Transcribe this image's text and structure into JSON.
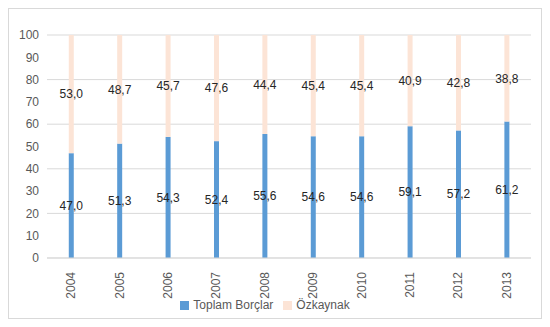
{
  "chart_data": {
    "type": "bar",
    "stacked": true,
    "data_labels": true,
    "grid": true,
    "legend": "bottom",
    "categories": [
      "2004",
      "2005",
      "2006",
      "2007",
      "2008",
      "2009",
      "2010",
      "2011",
      "2012",
      "2013"
    ],
    "series": [
      {
        "name": "Toplam Borçlar",
        "color": "#5b9bd5",
        "values": [
          47.0,
          51.3,
          54.3,
          52.4,
          55.6,
          54.6,
          54.6,
          59.1,
          57.2,
          61.2
        ],
        "value_labels": [
          "47,0",
          "51,3",
          "54,3",
          "52,4",
          "55,6",
          "54,6",
          "54,6",
          "59,1",
          "57,2",
          "61,2"
        ]
      },
      {
        "name": "Özkaynak",
        "color": "#fce4d6",
        "values": [
          53.0,
          48.7,
          45.7,
          47.6,
          44.4,
          45.4,
          45.4,
          40.9,
          42.8,
          38.8
        ],
        "value_labels": [
          "53,0",
          "48,7",
          "45,7",
          "47,6",
          "44,4",
          "45,4",
          "45,4",
          "40,9",
          "42,8",
          "38,8"
        ]
      }
    ],
    "ylim": [
      0,
      100
    ],
    "yticks": [
      0,
      10,
      20,
      30,
      40,
      50,
      60,
      70,
      80,
      90,
      100
    ]
  }
}
